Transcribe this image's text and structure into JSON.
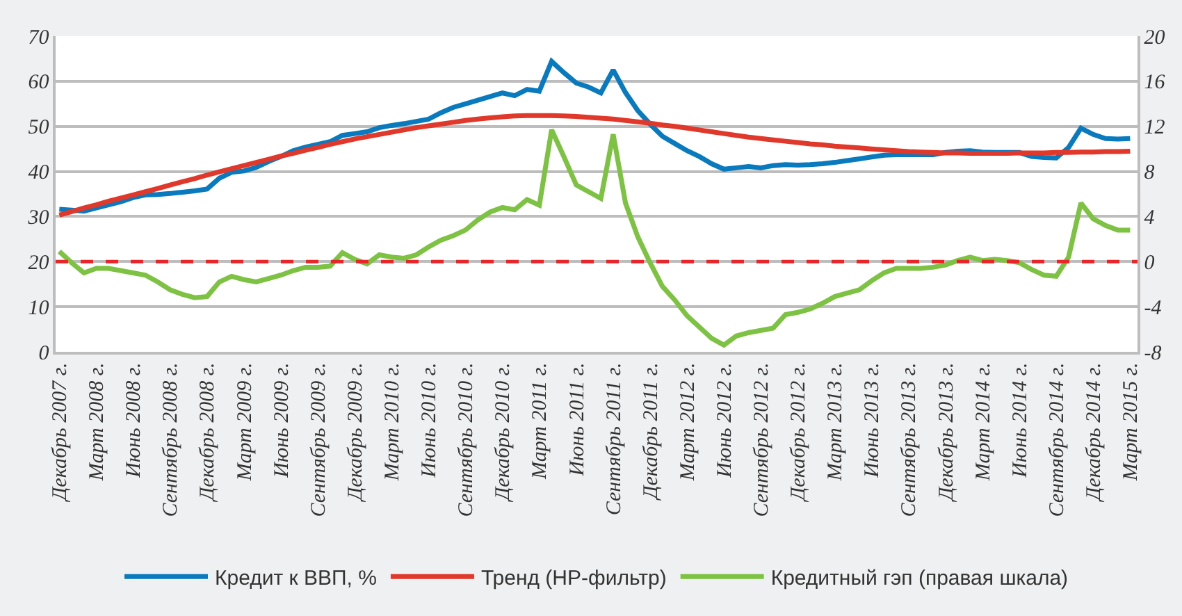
{
  "chart_data": {
    "type": "line",
    "categories": [
      "Декабрь 2007 г.",
      null,
      null,
      "Март 2008 г.",
      null,
      null,
      "Июнь 2008 г.",
      null,
      null,
      "Сентябрь 2008 г.",
      null,
      null,
      "Декабрь 2008 г.",
      null,
      null,
      "Март 2009 г.",
      null,
      null,
      "Июнь 2009 г.",
      null,
      null,
      "Сентябрь 2009 г.",
      null,
      null,
      "Декабрь 2009 г.",
      null,
      null,
      "Март 2010 г.",
      null,
      null,
      "Июнь 2010 г.",
      null,
      null,
      "Сентябрь 2010 г.",
      null,
      null,
      "Декабрь 2010 г.",
      null,
      null,
      "Март 2011 г.",
      null,
      null,
      "Июнь 2011 г.",
      null,
      null,
      "Сентябрь 2011 г.",
      null,
      null,
      "Декабрь 2011 г.",
      null,
      null,
      "Март 2012 г.",
      null,
      null,
      "Июнь 2012 г.",
      null,
      null,
      "Сентябрь 2012 г.",
      null,
      null,
      "Декабрь 2012 г.",
      null,
      null,
      "Март 2013 г.",
      null,
      null,
      "Июнь 2013 г.",
      null,
      null,
      "Сентябрь 2013 г.",
      null,
      null,
      "Декабрь 2013 г.",
      null,
      null,
      "Март 2014 г.",
      null,
      null,
      "Июнь 2014 г.",
      null,
      null,
      "Сентябрь 2014 г.",
      null,
      null,
      "Декабрь 2014 г.",
      null,
      null,
      "Март 2015 г."
    ],
    "series": [
      {
        "name": "Кредит к ВВП, %",
        "color": "#0a7abf",
        "values": [
          31.6,
          31.4,
          31.2,
          31.9,
          32.6,
          33.3,
          34.2,
          34.8,
          34.9,
          35.1,
          35.4,
          35.7,
          36.1,
          38.5,
          39.8,
          40.1,
          40.9,
          42.2,
          43.3,
          44.6,
          45.4,
          46,
          46.6,
          48,
          48.4,
          48.8,
          49.7,
          50.2,
          50.6,
          51.1,
          51.6,
          53,
          54.2,
          55,
          55.8,
          56.6,
          57.4,
          56.8,
          58.2,
          57.8,
          64.4,
          61.9,
          59.6,
          58.7,
          57.4,
          62.5,
          57.5,
          53.5,
          50.5,
          47.8,
          46.2,
          44.6,
          43.3,
          41.7,
          40.5,
          40.8,
          41.1,
          40.8,
          41.3,
          41.5,
          41.4,
          41.5,
          41.7,
          42,
          42.4,
          42.8,
          43.2,
          43.6,
          43.7,
          43.7,
          43.7,
          43.7,
          44.2,
          44.5,
          44.6,
          44.3,
          44.2,
          44.2,
          44.2,
          43.3,
          43.1,
          43,
          45.3,
          49.6,
          48.2,
          47.3,
          47.2,
          47.3
        ]
      },
      {
        "name": "Тренд (HP-фильтр)",
        "color": "#e0392b",
        "values": [
          30.3,
          31.1,
          31.9,
          32.6,
          33.4,
          34.1,
          34.8,
          35.5,
          36.2,
          37,
          37.7,
          38.4,
          39.2,
          39.9,
          40.6,
          41.3,
          42,
          42.7,
          43.4,
          44,
          44.7,
          45.3,
          46,
          46.6,
          47.2,
          47.7,
          48.2,
          48.7,
          49.2,
          49.7,
          50.1,
          50.5,
          50.9,
          51.3,
          51.6,
          51.9,
          52.1,
          52.3,
          52.4,
          52.4,
          52.4,
          52.3,
          52.2,
          52,
          51.8,
          51.6,
          51.3,
          51,
          50.7,
          50.3,
          50,
          49.6,
          49.2,
          48.8,
          48.4,
          48,
          47.6,
          47.3,
          47,
          46.7,
          46.4,
          46.1,
          45.9,
          45.6,
          45.4,
          45.2,
          45,
          44.8,
          44.6,
          44.4,
          44.3,
          44.2,
          44.1,
          44.1,
          44,
          44,
          44,
          44,
          44.1,
          44.1,
          44.1,
          44.2,
          44.2,
          44.3,
          44.3,
          44.4,
          44.4,
          44.5
        ]
      },
      {
        "name": "Кредитный гэп (правая шкала)",
        "color": "#7dc242",
        "axis": "y2",
        "values": [
          0.9,
          -0.1,
          -1,
          -0.6,
          -0.6,
          -0.8,
          -1,
          -1.2,
          -1.8,
          -2.5,
          -2.9,
          -3.2,
          -3.1,
          -1.8,
          -1.3,
          -1.6,
          -1.8,
          -1.5,
          -1.2,
          -0.8,
          -0.5,
          -0.5,
          -0.4,
          0.8,
          0.2,
          -0.2,
          0.6,
          0.4,
          0.3,
          0.6,
          1.3,
          1.9,
          2.3,
          2.8,
          3.7,
          4.4,
          4.8,
          4.6,
          5.5,
          5,
          11.7,
          9.3,
          6.8,
          6.2,
          5.6,
          11.3,
          5.2,
          2.2,
          -0.1,
          -2.2,
          -3.4,
          -4.8,
          -5.8,
          -6.8,
          -7.4,
          -6.6,
          -6.3,
          -6.1,
          -5.9,
          -4.7,
          -4.5,
          -4.2,
          -3.7,
          -3.1,
          -2.8,
          -2.5,
          -1.7,
          -1,
          -0.6,
          -0.6,
          -0.6,
          -0.5,
          -0.3,
          0.1,
          0.4,
          0.1,
          0.2,
          0.1,
          -0.1,
          -0.7,
          -1.2,
          -1.3,
          0.4,
          5.2,
          3.8,
          3.2,
          2.8,
          2.8
        ]
      }
    ],
    "ylim": [
      0,
      70
    ],
    "yticks": [
      0,
      10,
      20,
      30,
      40,
      50,
      60,
      70
    ],
    "y2lim": [
      -8,
      20
    ],
    "y2ticks": [
      -8,
      -4,
      0,
      4,
      8,
      12,
      16,
      20
    ],
    "ref_lines": [
      {
        "axis": "y2",
        "value": 0,
        "color": "#e8262a",
        "line_style": "dashed"
      }
    ],
    "grid": "y",
    "legend": "bottom",
    "line_style": "solid"
  }
}
